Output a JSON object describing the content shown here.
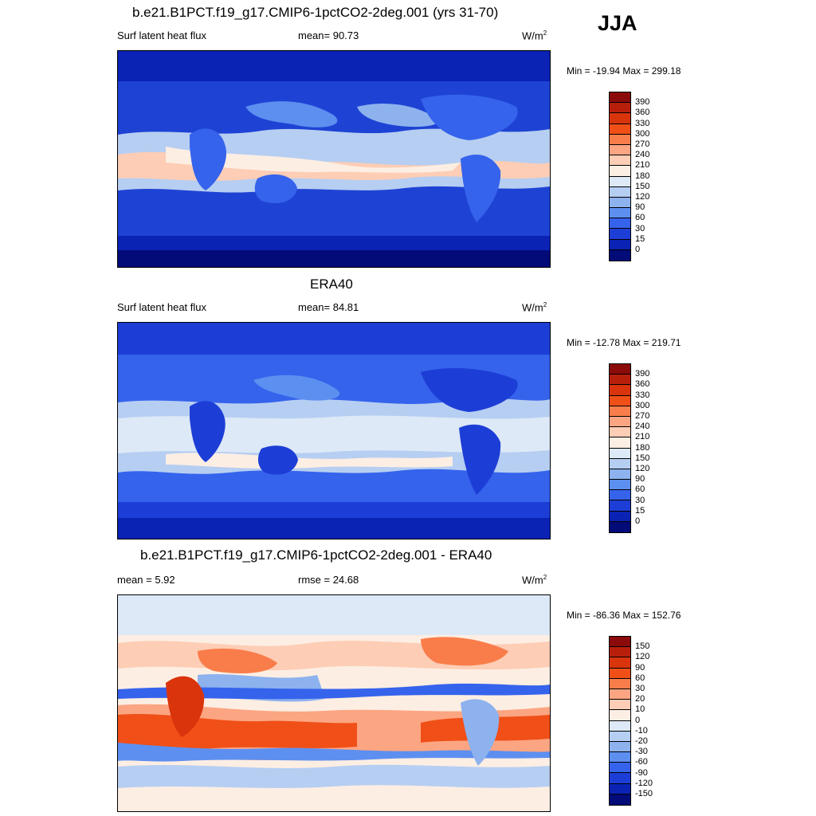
{
  "season": "JJA",
  "units_base": "W/m",
  "units_exp": "2",
  "panel1": {
    "title": "b.e21.B1PCT.f19_g17.CMIP6-1pctCO2-2deg.001 (yrs 31-70)",
    "left_label": "Surf latent heat flux",
    "stat_text": "mean=  90.73",
    "minmax": "Min = -19.94 Max = 299.18"
  },
  "panel2": {
    "title": "ERA40",
    "left_label": "Surf latent heat flux",
    "stat_text": "mean=  84.81",
    "minmax": "Min = -12.78 Max = 219.71"
  },
  "panel3": {
    "title": "b.e21.B1PCT.f19_g17.CMIP6-1pctCO2-2deg.001 - ERA40",
    "left_label": "mean =   5.92",
    "stat_text": "rmse =  24.68",
    "minmax": "Min = -86.36 Max = 152.76"
  },
  "colorbar_abs": {
    "levels": [
      "390",
      "360",
      "330",
      "300",
      "270",
      "240",
      "210",
      "180",
      "150",
      "120",
      "90",
      "60",
      "30",
      "15",
      "0"
    ],
    "colors": [
      "#8b0a0a",
      "#b81f0a",
      "#d9340c",
      "#f04f18",
      "#f97d4a",
      "#fca582",
      "#fdcdb5",
      "#fdeee3",
      "#dde9f7",
      "#b6cef2",
      "#8db2ee",
      "#5d8ff0",
      "#3563ec",
      "#1d3ed6",
      "#0a23b4",
      "#020b78"
    ]
  },
  "colorbar_diff": {
    "levels": [
      "150",
      "120",
      "90",
      "60",
      "30",
      "20",
      "10",
      "0",
      "-10",
      "-20",
      "-30",
      "-60",
      "-90",
      "-120",
      "-150"
    ],
    "colors": [
      "#8b0a0a",
      "#b81f0a",
      "#d9340c",
      "#f04f18",
      "#f97d4a",
      "#fca582",
      "#fdcdb5",
      "#fdeee3",
      "#dde9f7",
      "#b6cef2",
      "#8db2ee",
      "#5d8ff0",
      "#3563ec",
      "#1d3ed6",
      "#0a23b4",
      "#020b78"
    ]
  }
}
